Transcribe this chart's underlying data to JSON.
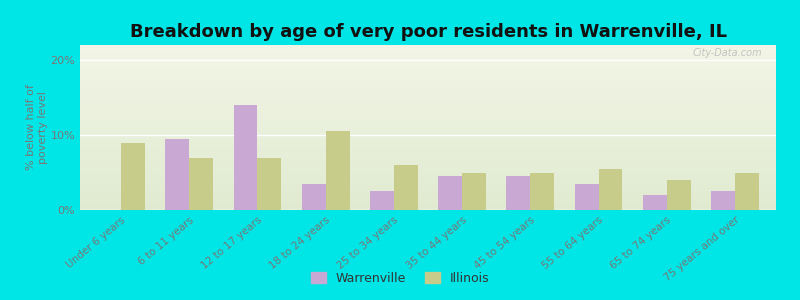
{
  "categories": [
    "Under 6 years",
    "6 to 11 years",
    "12 to 17 years",
    "18 to 24 years",
    "25 to 34 years",
    "35 to 44 years",
    "45 to 54 years",
    "55 to 64 years",
    "65 to 74 years",
    "75 years and over"
  ],
  "warrenville": [
    0.0,
    9.5,
    14.0,
    3.5,
    2.5,
    4.5,
    4.5,
    3.5,
    2.0,
    2.5
  ],
  "illinois": [
    9.0,
    7.0,
    7.0,
    10.5,
    6.0,
    5.0,
    5.0,
    5.5,
    4.0,
    5.0
  ],
  "warrenville_color": "#c9a8d4",
  "illinois_color": "#c8cc8a",
  "background_outer": "#00e5e5",
  "background_plot_top": "#f2f5e6",
  "background_plot_bottom": "#e0ead0",
  "title": "Breakdown by age of very poor residents in Warrenville, IL",
  "ylabel": "% below half of\npoverty level",
  "ylim": [
    0,
    22
  ],
  "yticks": [
    0,
    10,
    20
  ],
  "ytick_labels": [
    "0%",
    "10%",
    "20%"
  ],
  "bar_width": 0.35,
  "title_fontsize": 13,
  "label_fontsize": 7.5,
  "watermark": "City-Data.com",
  "tick_color": "#777777"
}
